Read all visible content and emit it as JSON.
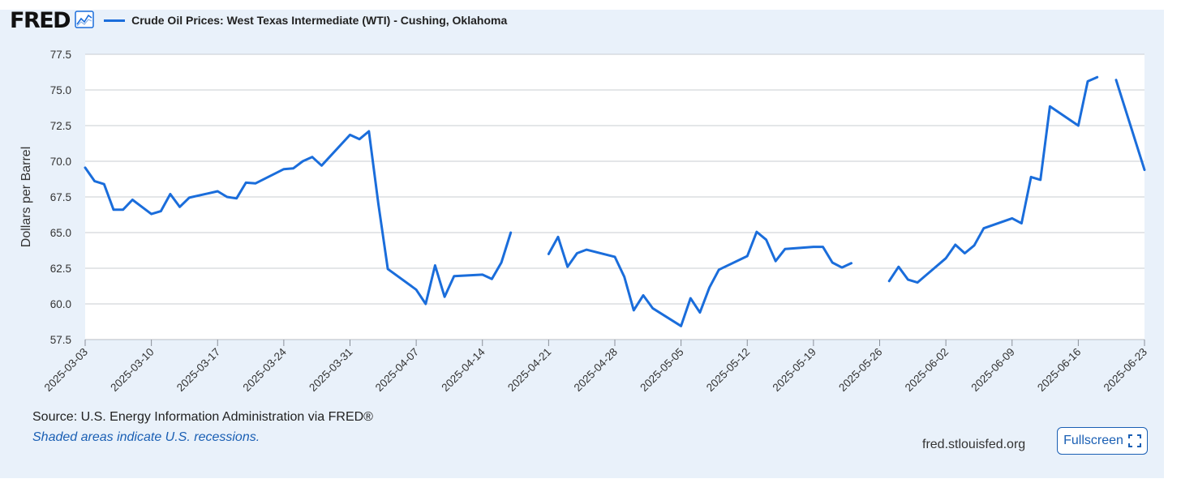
{
  "header": {
    "logo_text": "FRED",
    "logo_icon": "graph-icon"
  },
  "footer": {
    "source": "Source: U.S. Energy Information Administration via FRED®",
    "recessions_note": "Shaded areas indicate U.S. recessions.",
    "site": "fred.stlouisfed.org",
    "fullscreen_label": "Fullscreen",
    "fullscreen_icon": "fullscreen-icon"
  },
  "colors": {
    "series": "#1a6ddb",
    "background": "#e9f1fa",
    "plot_background": "#ffffff",
    "gridline": "#c8ccd2",
    "link": "#1a5fb4"
  },
  "chart_data": {
    "type": "line",
    "title": "",
    "xlabel": "",
    "ylabel": "Dollars per Barrel",
    "ylim": [
      57.5,
      77.5
    ],
    "yticks": [
      "57.5",
      "60.0",
      "62.5",
      "65.0",
      "67.5",
      "70.0",
      "72.5",
      "75.0",
      "77.5"
    ],
    "xlim": [
      "2025-03-03",
      "2025-06-23"
    ],
    "xticks": [
      "2025-03-03",
      "2025-03-10",
      "2025-03-17",
      "2025-03-24",
      "2025-03-31",
      "2025-04-07",
      "2025-04-14",
      "2025-04-21",
      "2025-04-28",
      "2025-05-05",
      "2025-05-12",
      "2025-05-19",
      "2025-05-26",
      "2025-06-02",
      "2025-06-09",
      "2025-06-16",
      "2025-06-23"
    ],
    "grid": true,
    "legend": "top-left",
    "series": [
      {
        "name": "Crude Oil Prices: West Texas Intermediate (WTI) - Cushing, Oklahoma",
        "points": [
          [
            "2025-03-03",
            69.55
          ],
          [
            "2025-03-04",
            68.6
          ],
          [
            "2025-03-05",
            68.4
          ],
          [
            "2025-03-06",
            66.6
          ],
          [
            "2025-03-07",
            66.6
          ],
          [
            "2025-03-08",
            67.3
          ],
          [
            "2025-03-10",
            66.3
          ],
          [
            "2025-03-11",
            66.5
          ],
          [
            "2025-03-12",
            67.7
          ],
          [
            "2025-03-13",
            66.8
          ],
          [
            "2025-03-14",
            67.45
          ],
          [
            "2025-03-17",
            67.9
          ],
          [
            "2025-03-18",
            67.5
          ],
          [
            "2025-03-19",
            67.4
          ],
          [
            "2025-03-20",
            68.5
          ],
          [
            "2025-03-21",
            68.45
          ],
          [
            "2025-03-24",
            69.45
          ],
          [
            "2025-03-25",
            69.5
          ],
          [
            "2025-03-26",
            70.0
          ],
          [
            "2025-03-27",
            70.3
          ],
          [
            "2025-03-28",
            69.7
          ],
          [
            "2025-03-31",
            71.85
          ],
          [
            "2025-04-01",
            71.55
          ],
          [
            "2025-04-02",
            72.1
          ],
          [
            "2025-04-03",
            67.0
          ],
          [
            "2025-04-04",
            62.45
          ],
          [
            "2025-04-07",
            61.0
          ],
          [
            "2025-04-08",
            60.0
          ],
          [
            "2025-04-09",
            62.7
          ],
          [
            "2025-04-10",
            60.5
          ],
          [
            "2025-04-11",
            61.95
          ],
          [
            "2025-04-14",
            62.05
          ],
          [
            "2025-04-15",
            61.75
          ],
          [
            "2025-04-16",
            62.9
          ],
          [
            "2025-04-17",
            65.0
          ],
          null,
          [
            "2025-04-21",
            63.5
          ],
          [
            "2025-04-22",
            64.7
          ],
          [
            "2025-04-23",
            62.6
          ],
          [
            "2025-04-24",
            63.55
          ],
          [
            "2025-04-25",
            63.8
          ],
          [
            "2025-04-28",
            63.3
          ],
          [
            "2025-04-29",
            61.9
          ],
          [
            "2025-04-30",
            59.55
          ],
          [
            "2025-05-01",
            60.6
          ],
          [
            "2025-05-02",
            59.7
          ],
          [
            "2025-05-05",
            58.45
          ],
          [
            "2025-05-06",
            60.4
          ],
          [
            "2025-05-07",
            59.4
          ],
          [
            "2025-05-08",
            61.15
          ],
          [
            "2025-05-09",
            62.4
          ],
          [
            "2025-05-12",
            63.35
          ],
          [
            "2025-05-13",
            65.05
          ],
          [
            "2025-05-14",
            64.5
          ],
          [
            "2025-05-15",
            63.0
          ],
          [
            "2025-05-16",
            63.85
          ],
          [
            "2025-05-19",
            64.0
          ],
          [
            "2025-05-20",
            64.0
          ],
          [
            "2025-05-21",
            62.9
          ],
          [
            "2025-05-22",
            62.55
          ],
          [
            "2025-05-23",
            62.85
          ],
          null,
          [
            "2025-05-27",
            61.6
          ],
          [
            "2025-05-28",
            62.6
          ],
          [
            "2025-05-29",
            61.7
          ],
          [
            "2025-05-30",
            61.5
          ],
          [
            "2025-06-02",
            63.2
          ],
          [
            "2025-06-03",
            64.15
          ],
          [
            "2025-06-04",
            63.55
          ],
          [
            "2025-06-05",
            64.1
          ],
          [
            "2025-06-06",
            65.3
          ],
          [
            "2025-06-09",
            66.0
          ],
          [
            "2025-06-10",
            65.65
          ],
          [
            "2025-06-11",
            68.9
          ],
          [
            "2025-06-12",
            68.7
          ],
          [
            "2025-06-13",
            73.85
          ],
          [
            "2025-06-16",
            72.5
          ],
          [
            "2025-06-17",
            75.6
          ],
          [
            "2025-06-18",
            75.9
          ],
          null,
          [
            "2025-06-20",
            75.7
          ],
          [
            "2025-06-23",
            69.4
          ]
        ]
      }
    ]
  }
}
